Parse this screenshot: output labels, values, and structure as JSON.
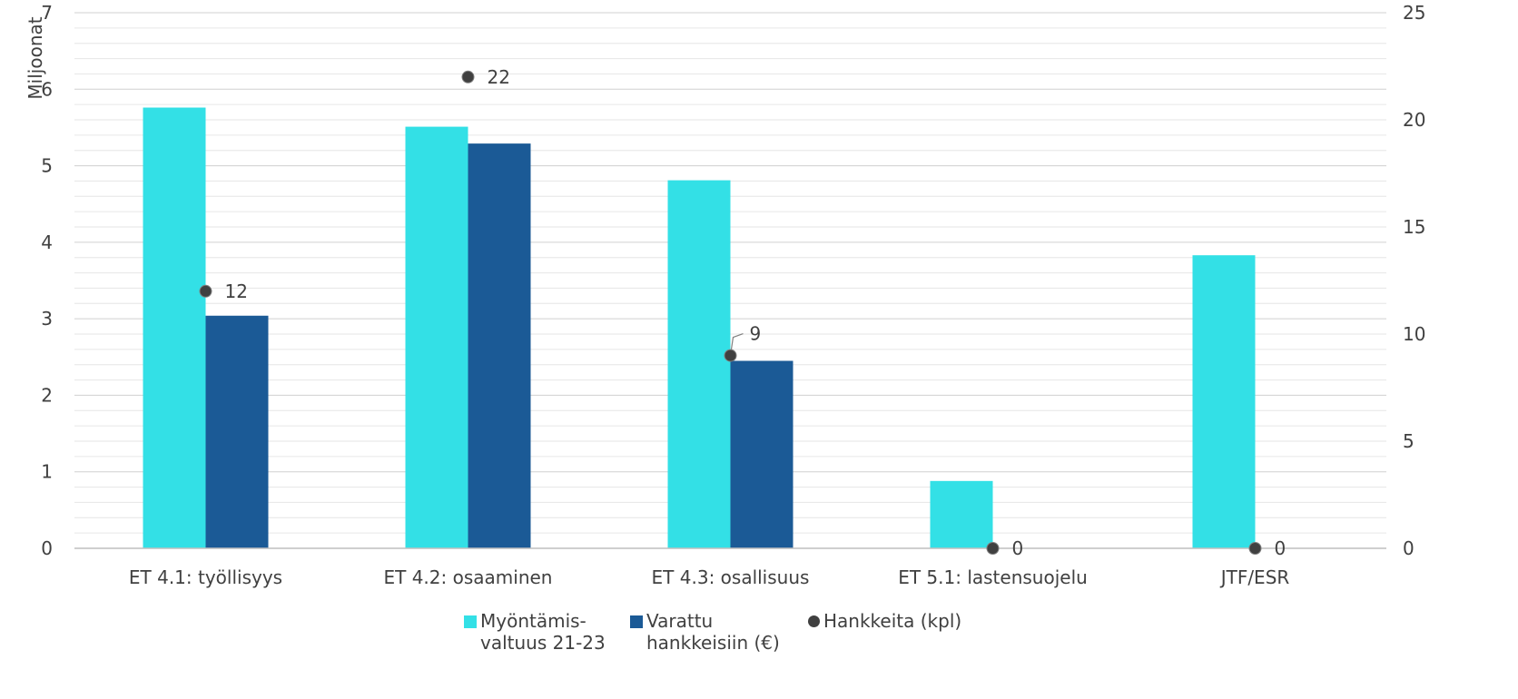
{
  "chart_data": {
    "type": "bar",
    "categories": [
      "ET 4.1: työllisyys",
      "ET 4.2: osaaminen",
      "ET 4.3: osallisuus",
      "ET 5.1: lastensuojelu",
      "JTF/ESR"
    ],
    "series": [
      {
        "name": "Myöntämis-valtuus 21-23",
        "legend_lines": [
          "Myöntämis-",
          "valtuus 21-23"
        ],
        "type": "bar",
        "axis": "left",
        "color": "#33E0E6",
        "values": [
          5.76,
          5.51,
          4.81,
          0.88,
          3.83
        ]
      },
      {
        "name": "Varattu hankkeisiin (€)",
        "legend_lines": [
          "Varattu",
          "hankkeisiin (€)"
        ],
        "type": "bar",
        "axis": "left",
        "color": "#1B5A96",
        "values": [
          3.04,
          5.29,
          2.45,
          0,
          0
        ]
      },
      {
        "name": "Hankkeita (kpl)",
        "legend_lines": [
          "Hankkeita (kpl)"
        ],
        "type": "scatter",
        "axis": "right",
        "color": "#404040",
        "values": [
          12,
          22,
          9,
          0,
          0
        ]
      }
    ],
    "data_labels": [
      "12",
      "22",
      "9",
      "0",
      "0"
    ],
    "y_left": {
      "label": "Miljoonat",
      "range": [
        0,
        7
      ],
      "ticks": [
        "0",
        "1",
        "2",
        "3",
        "4",
        "5",
        "6",
        "7"
      ]
    },
    "y_right": {
      "range": [
        0,
        25
      ],
      "ticks": [
        "0",
        "5",
        "10",
        "15",
        "20",
        "25"
      ]
    },
    "grid": {
      "major": true,
      "minor": true
    },
    "legend_position": "bottom"
  }
}
